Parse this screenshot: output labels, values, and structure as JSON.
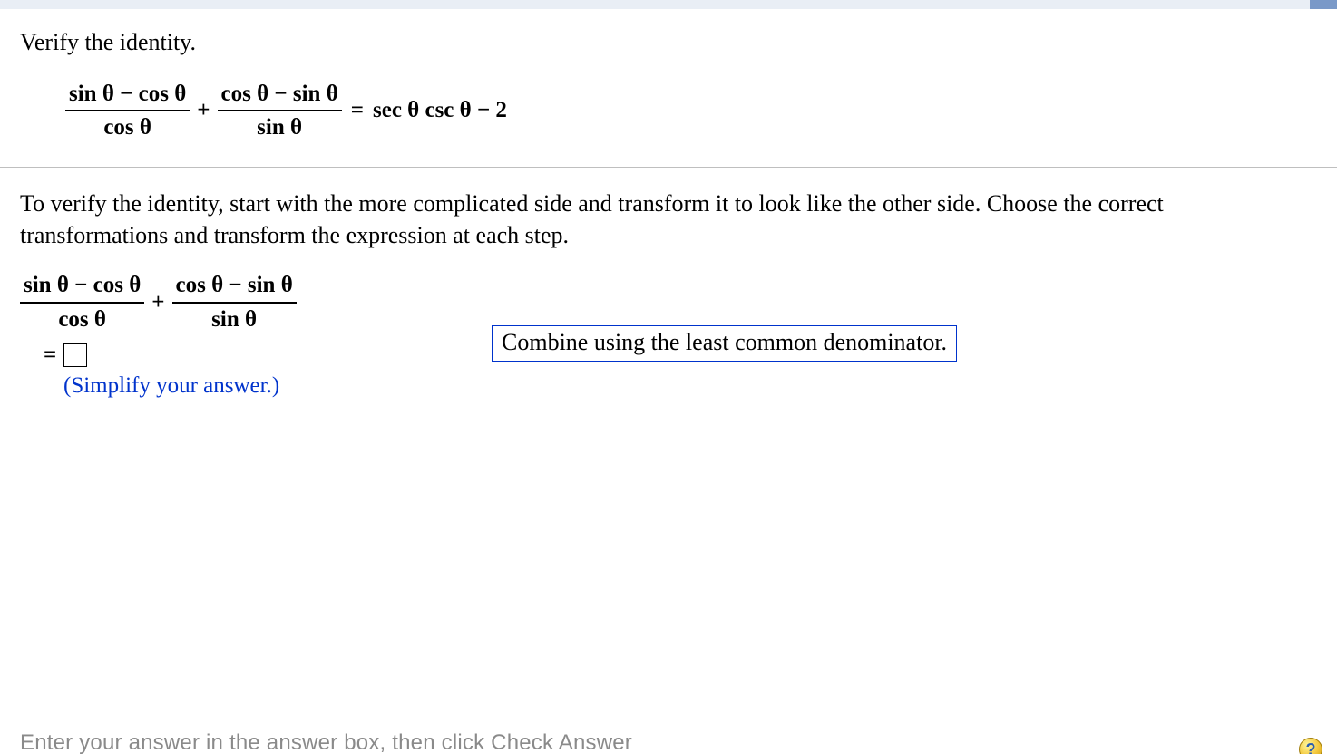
{
  "title": "Verify the identity.",
  "identity": {
    "frac1": {
      "num": "sin θ − cos θ",
      "den": "cos θ"
    },
    "op1": "+",
    "frac2": {
      "num": "cos θ − sin θ",
      "den": "sin θ"
    },
    "equals": "=",
    "rhs": "sec θ csc θ − 2"
  },
  "instruction": "To verify the identity, start with the more complicated side and transform it to look like the other side. Choose the correct transformations and transform the expression at each step.",
  "work": {
    "expr_frac1": {
      "num": "sin θ − cos θ",
      "den": "cos θ"
    },
    "expr_op": "+",
    "expr_frac2": {
      "num": "cos θ − sin θ",
      "den": "sin θ"
    },
    "equals_line": "=",
    "simplify_note": "(Simplify your answer.)"
  },
  "transformation_hint": "Combine using the least common denominator.",
  "footer_hint": "Enter your answer in the answer box, then click Check Answer",
  "help_glyph": "?",
  "colors": {
    "band_bg": "#e9eef5",
    "corner_tab": "#7a99c8",
    "accent_blue": "#0033cc",
    "separator": "#bfbfbf",
    "footer_gray": "#8a8a8a"
  }
}
